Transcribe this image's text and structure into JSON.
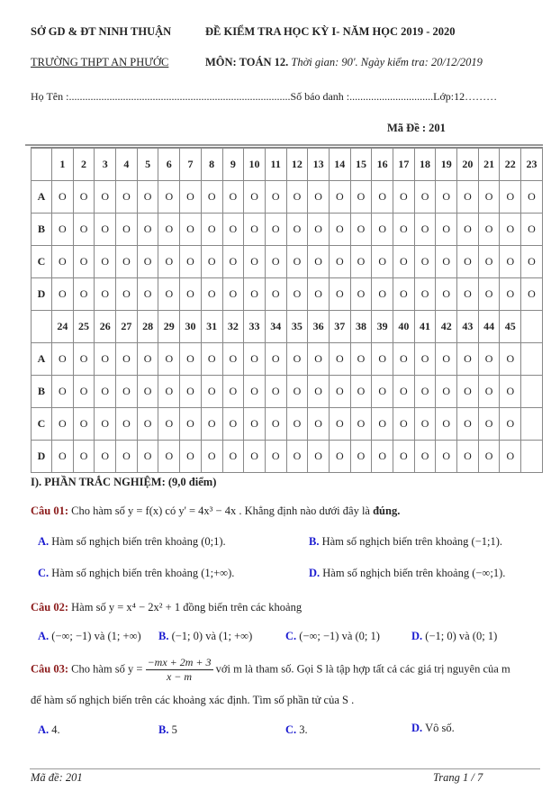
{
  "header": {
    "dept": "SỞ GD & ĐT NINH THUẬN",
    "school": "TRƯỜNG THPT AN PHƯỚC",
    "exam_title": "ĐỀ KIỂM TRA HỌC KỲ I- NĂM  HỌC 2019 - 2020",
    "subject": "MÔN: TOÁN 12.",
    "time_info": "Thời gian: 90'. Ngày kiểm tra: 20/12/2019"
  },
  "student": {
    "name_label": "Họ Tên :..................................................................................",
    "id_label": "Số báo danh :...............................",
    "class_label": "Lớp:12………"
  },
  "exam_code": "Mã Đề : 201",
  "answer_sheet": {
    "blocks": [
      {
        "numbers": [
          "1",
          "2",
          "3",
          "4",
          "5",
          "6",
          "7",
          "8",
          "9",
          "10",
          "11",
          "12",
          "13",
          "14",
          "15",
          "16",
          "17",
          "18",
          "19",
          "20",
          "21",
          "22",
          "23"
        ]
      },
      {
        "numbers": [
          "24",
          "25",
          "26",
          "27",
          "28",
          "29",
          "30",
          "31",
          "32",
          "33",
          "34",
          "35",
          "36",
          "37",
          "38",
          "39",
          "40",
          "41",
          "42",
          "43",
          "44",
          "45",
          ""
        ]
      }
    ],
    "choices": [
      "A",
      "B",
      "C",
      "D"
    ],
    "bubble": "O"
  },
  "section": "I). PHẦN TRẮC NGHIỆM: (9,0 điểm)",
  "questions": [
    {
      "label": "Câu 01:",
      "text": "Cho hàm số y = f(x) có  y' = 4x³ − 4x . Khẳng định nào dưới đây là ",
      "bold_tail": "đúng.",
      "options": [
        {
          "k": "A.",
          "t": "Hàm số nghịch biến  trên khoảng (0;1)."
        },
        {
          "k": "B.",
          "t": "Hàm số nghịch biến trên khoảng (−1;1)."
        },
        {
          "k": "C.",
          "t": "Hàm số nghịch biến  trên khoảng (1;+∞)."
        },
        {
          "k": "D.",
          "t": "Hàm số nghịch biến  trên khoảng (−∞;1)."
        }
      ]
    },
    {
      "label": "Câu 02:",
      "text": "Hàm số  y = x⁴ − 2x² + 1 đồng biến trên các khoảng",
      "options": [
        {
          "k": "A.",
          "t": "(−∞; −1) và (1; +∞)"
        },
        {
          "k": "B.",
          "t": "(−1; 0) và (1; +∞)"
        },
        {
          "k": "C.",
          "t": "(−∞; −1) và (0; 1)"
        },
        {
          "k": "D.",
          "t": "(−1; 0) và (0; 1)"
        }
      ]
    },
    {
      "label": "Câu 03:",
      "pre": "Cho hàm số  y =",
      "num": "−mx + 2m + 3",
      "den": "x − m",
      "post": " với m  là tham số. Gọi S là tập hợp tất cả các giá trị nguyên của m",
      "line2": "để hàm số nghịch biến trên các khoảng xác định. Tìm số phần tử của S .",
      "options": [
        {
          "k": "A.",
          "t": "4."
        },
        {
          "k": "B.",
          "t": "5"
        },
        {
          "k": "C.",
          "t": "3."
        },
        {
          "k": "D.",
          "t": "Vô số."
        }
      ]
    }
  ],
  "footer": {
    "code": "Mã đề: 201",
    "page": "Trang 1 / 7"
  }
}
